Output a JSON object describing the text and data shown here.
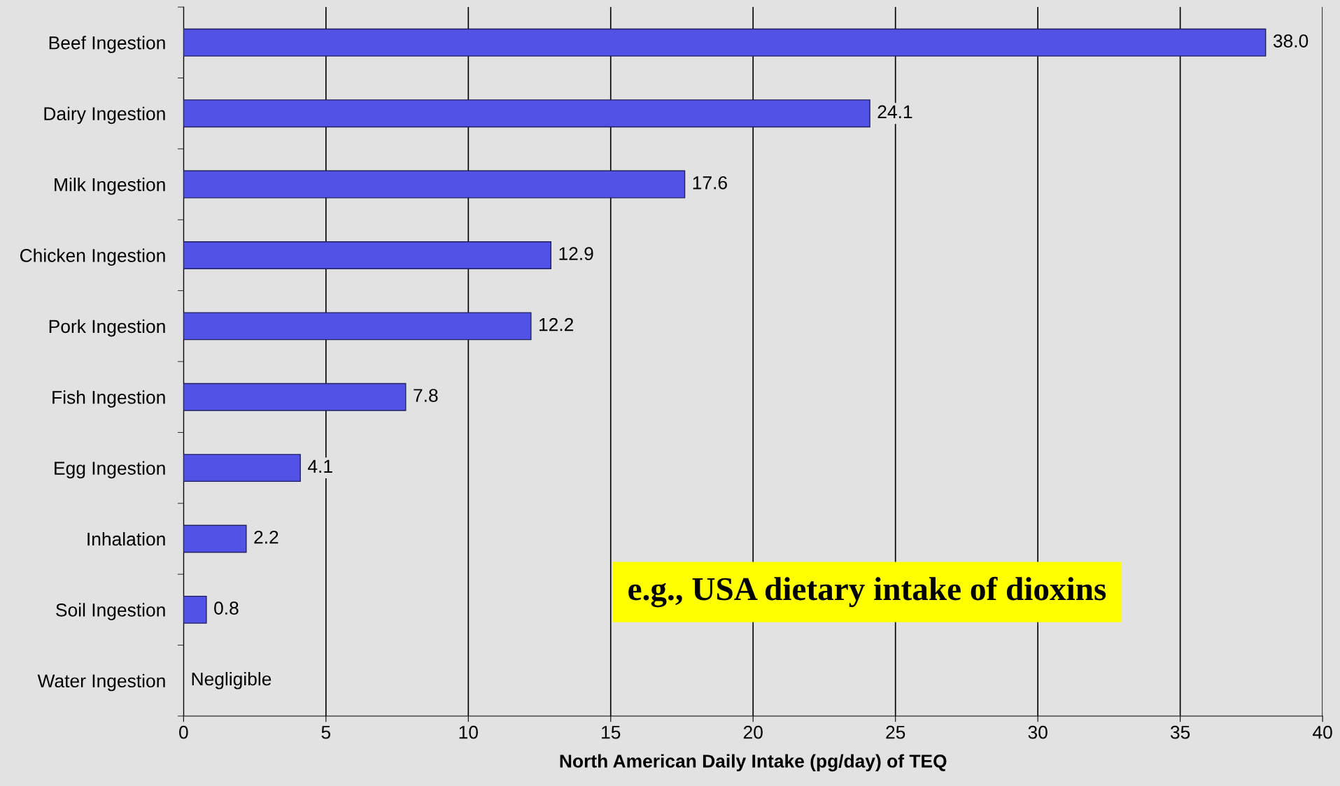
{
  "chart_data": {
    "type": "bar",
    "orientation": "horizontal",
    "xlabel": "North American Daily Intake (pg/day) of TEQ",
    "categories": [
      "Beef Ingestion",
      "Dairy Ingestion",
      "Milk Ingestion",
      "Chicken Ingestion",
      "Pork Ingestion",
      "Fish Ingestion",
      "Egg Ingestion",
      "Inhalation",
      "Soil Ingestion",
      "Water Ingestion"
    ],
    "values": [
      38.0,
      24.1,
      17.6,
      12.9,
      12.2,
      7.8,
      4.1,
      2.2,
      0.8,
      null
    ],
    "value_labels": [
      "38.0",
      "24.1",
      "17.6",
      "12.9",
      "12.2",
      "7.8",
      "4.1",
      "2.2",
      "0.8",
      "Negligible"
    ],
    "color": "#5252e6",
    "xlim": [
      0,
      40
    ],
    "xticks": [
      0,
      5,
      10,
      15,
      20,
      25,
      30,
      35,
      40
    ],
    "grid": "x",
    "annotations": [
      "e.g., USA dietary intake of dioxins"
    ]
  }
}
